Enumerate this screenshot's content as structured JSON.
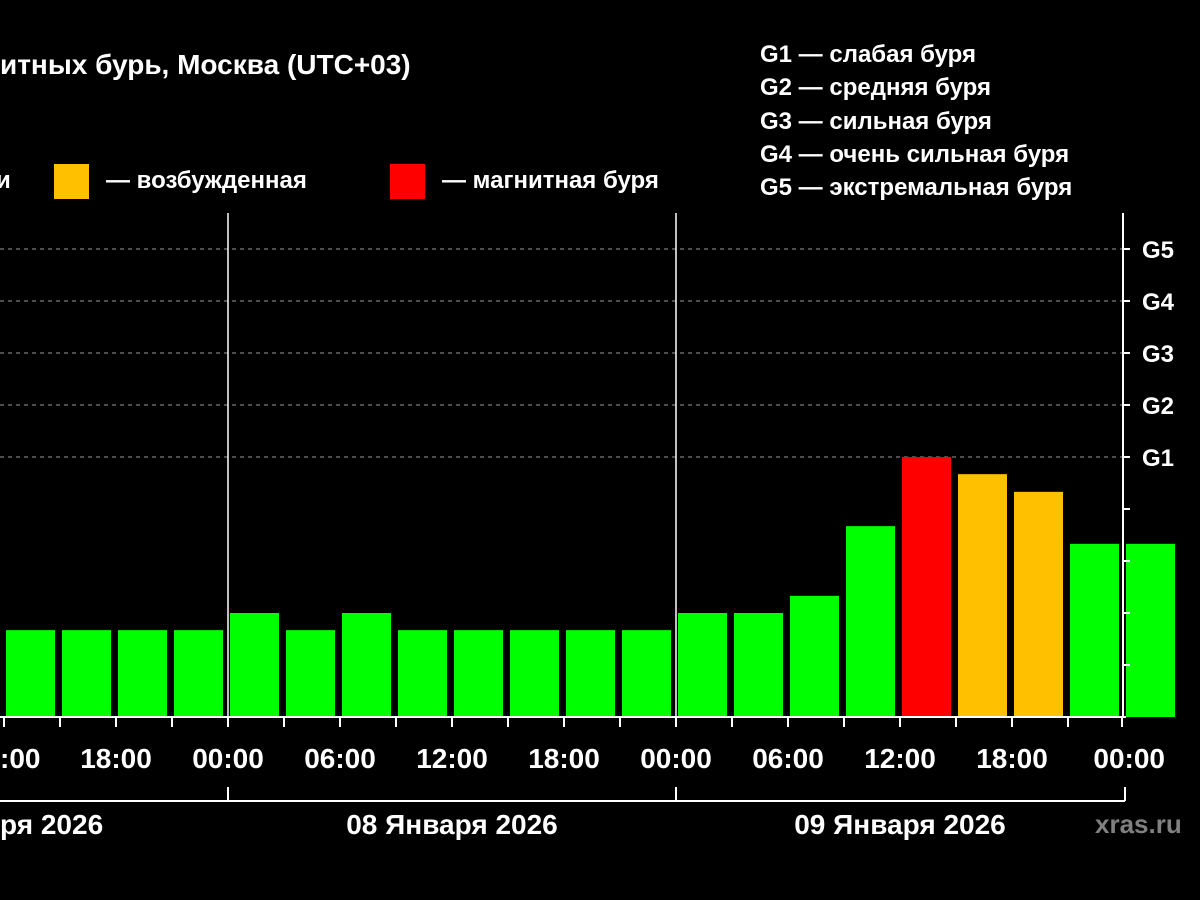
{
  "title": "итных бурь, Москва (UTC+03)",
  "legend": {
    "items": [
      {
        "label": "— возбужденная",
        "color": "#ffc000"
      },
      {
        "label": "— магнитная буря",
        "color": "#ff0000"
      }
    ],
    "partial_label": "и",
    "g_levels": [
      "G1 — слабая буря",
      "G2 — средняя буря",
      "G3 — сильная буря",
      "G4 — очень сильная буря",
      "G5 — экстремальная буря"
    ]
  },
  "credit": "xras.ru",
  "colors": {
    "quiet": "#00ff00",
    "excited": "#ffc000",
    "storm": "#ff0000",
    "background": "#000000"
  },
  "chart_data": {
    "type": "bar",
    "y_unit": "Kp",
    "ylim": [
      0,
      9
    ],
    "right_axis_labels": [
      {
        "label": "G1",
        "value": 5
      },
      {
        "label": "G2",
        "value": 6
      },
      {
        "label": "G3",
        "value": 7
      },
      {
        "label": "G4",
        "value": 8
      },
      {
        "label": "G5",
        "value": 9
      }
    ],
    "x_tick_labels": [
      ":00",
      "18:00",
      "00:00",
      "06:00",
      "12:00",
      "18:00",
      "00:00",
      "06:00",
      "12:00",
      "18:00",
      "00:00"
    ],
    "date_labels": [
      "ря 2026",
      "08 Января 2026",
      "09 Января 2026"
    ],
    "bars": [
      {
        "value": 1.67,
        "level": "quiet"
      },
      {
        "value": 1.67,
        "level": "quiet"
      },
      {
        "value": 1.67,
        "level": "quiet"
      },
      {
        "value": 1.67,
        "level": "quiet"
      },
      {
        "value": 2.0,
        "level": "quiet"
      },
      {
        "value": 1.67,
        "level": "quiet"
      },
      {
        "value": 2.0,
        "level": "quiet"
      },
      {
        "value": 1.67,
        "level": "quiet"
      },
      {
        "value": 1.67,
        "level": "quiet"
      },
      {
        "value": 1.67,
        "level": "quiet"
      },
      {
        "value": 1.67,
        "level": "quiet"
      },
      {
        "value": 1.67,
        "level": "quiet"
      },
      {
        "value": 2.0,
        "level": "quiet"
      },
      {
        "value": 2.0,
        "level": "quiet"
      },
      {
        "value": 2.33,
        "level": "quiet"
      },
      {
        "value": 3.67,
        "level": "quiet"
      },
      {
        "value": 5.0,
        "level": "storm"
      },
      {
        "value": 4.67,
        "level": "excited"
      },
      {
        "value": 4.33,
        "level": "excited"
      },
      {
        "value": 3.33,
        "level": "quiet"
      },
      {
        "value": 3.33,
        "level": "quiet"
      }
    ]
  }
}
